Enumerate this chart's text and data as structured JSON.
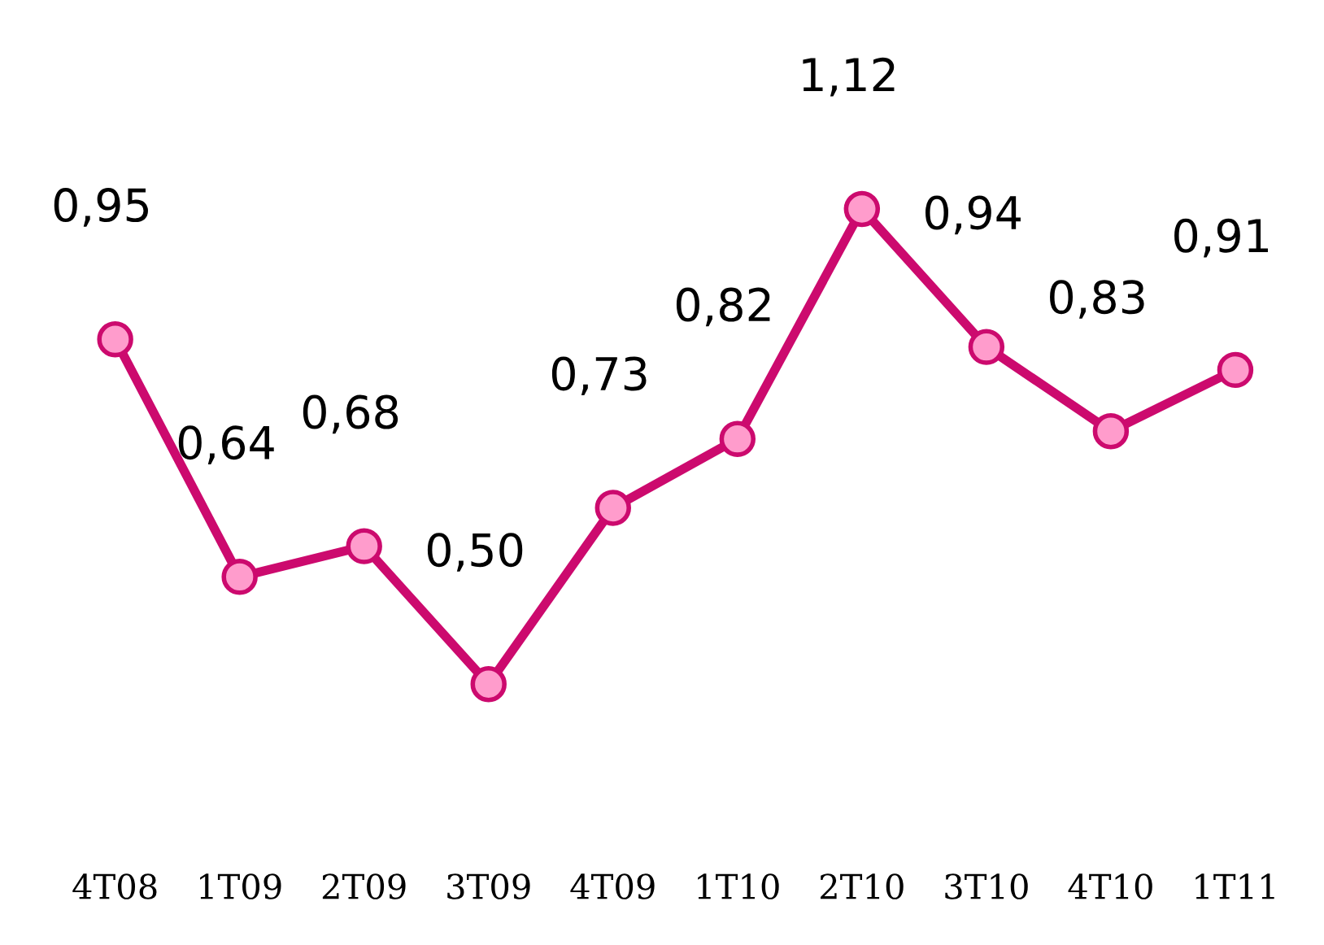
{
  "chart_data": {
    "type": "line",
    "categories": [
      "4T08",
      "1T09",
      "2T09",
      "3T09",
      "4T09",
      "1T10",
      "2T10",
      "3T10",
      "4T10",
      "1T11"
    ],
    "series": [
      {
        "color": "#cc0a6e",
        "values": [
          0.95,
          0.64,
          0.68,
          0.5,
          0.73,
          0.82,
          1.12,
          0.94,
          0.83,
          0.91
        ],
        "value_labels": [
          "0,95",
          "0,64",
          "0,68",
          "0,50",
          "0,73",
          "0,82",
          "1,12",
          "0,94",
          "0,83",
          "0,91"
        ]
      }
    ],
    "marker": "circle",
    "line_style": "solid"
  }
}
